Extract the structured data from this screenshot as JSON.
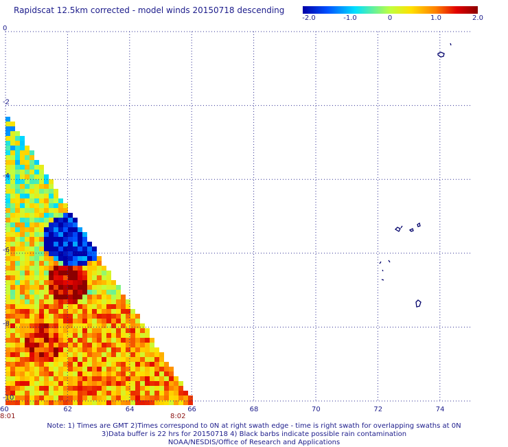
{
  "title": "Rapidscat 12.5km corrected - model winds 20150718 descending",
  "colorbar": {
    "labels": [
      "-2.0",
      "-1.0",
      "0",
      "1.0",
      "2.0"
    ],
    "values": [
      -2.0,
      -1.0,
      0,
      1.0,
      2.0
    ],
    "min": -2.0,
    "max": 2.0,
    "colors": [
      "#0000a8",
      "#0050ff",
      "#00e0ff",
      "#c0ff40",
      "#ffe000",
      "#ff8000",
      "#e00000",
      "#8c0000"
    ]
  },
  "axes": {
    "x_ticks": [
      "60",
      "62",
      "64",
      "66",
      "68",
      "70",
      "72",
      "74"
    ],
    "y_ticks": [
      "0",
      "-2",
      "-4",
      "-6",
      "-8",
      "-10"
    ],
    "lon_range": [
      60,
      75
    ],
    "lat_range": [
      -10,
      0
    ],
    "grid": true
  },
  "timestamps": [
    "8:01",
    "8:02"
  ],
  "notes": [
    "Note: 1) Times are GMT 2)Times correspond to 0N at right swath edge - time is right swath for overlapping swaths at 0N",
    "3)Data buffer is 22 hrs for 20150718 4) Black barbs indicate possible rain contamination",
    "NOAA/NESDIS/Office of Research and Applications"
  ]
}
